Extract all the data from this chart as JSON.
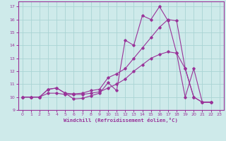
{
  "xlabel": "Windchill (Refroidissement éolien,°C)",
  "bg_color": "#ceeaea",
  "grid_color": "#aad4d4",
  "line_color": "#993399",
  "xlim": [
    -0.5,
    23.5
  ],
  "ylim": [
    9,
    17.4
  ],
  "xticks": [
    0,
    1,
    2,
    3,
    4,
    5,
    6,
    7,
    8,
    9,
    10,
    11,
    12,
    13,
    14,
    15,
    16,
    17,
    18,
    19,
    20,
    21,
    22,
    23
  ],
  "yticks": [
    9,
    10,
    11,
    12,
    13,
    14,
    15,
    16,
    17
  ],
  "line1_x": [
    0,
    1,
    2,
    3,
    4,
    5,
    6,
    7,
    8,
    9,
    10,
    11,
    12,
    13,
    14,
    15,
    16,
    17,
    18,
    19,
    20,
    21,
    22
  ],
  "line1_y": [
    10.0,
    10.0,
    10.0,
    10.6,
    10.7,
    10.3,
    9.85,
    9.9,
    10.1,
    10.3,
    11.1,
    10.5,
    14.4,
    14.0,
    16.3,
    16.0,
    17.0,
    15.9,
    13.4,
    10.0,
    12.2,
    9.6,
    9.6
  ],
  "line2_x": [
    0,
    1,
    2,
    3,
    4,
    5,
    6,
    7,
    8,
    9,
    10,
    11,
    12,
    13,
    14,
    15,
    16,
    17,
    18,
    19,
    20,
    21,
    22
  ],
  "line2_y": [
    10.0,
    10.0,
    10.0,
    10.6,
    10.7,
    10.3,
    10.25,
    10.3,
    10.5,
    10.6,
    11.5,
    11.8,
    12.2,
    13.0,
    13.8,
    14.6,
    15.4,
    16.0,
    15.9,
    12.2,
    10.0,
    9.6,
    9.6
  ],
  "line3_x": [
    0,
    1,
    2,
    3,
    4,
    5,
    6,
    7,
    8,
    9,
    10,
    11,
    12,
    13,
    14,
    15,
    16,
    17,
    18,
    19,
    20,
    21,
    22
  ],
  "line3_y": [
    10.0,
    10.0,
    10.0,
    10.3,
    10.3,
    10.2,
    10.2,
    10.2,
    10.3,
    10.4,
    10.7,
    11.0,
    11.4,
    12.0,
    12.5,
    13.0,
    13.3,
    13.5,
    13.4,
    12.2,
    10.0,
    9.6,
    9.6
  ]
}
